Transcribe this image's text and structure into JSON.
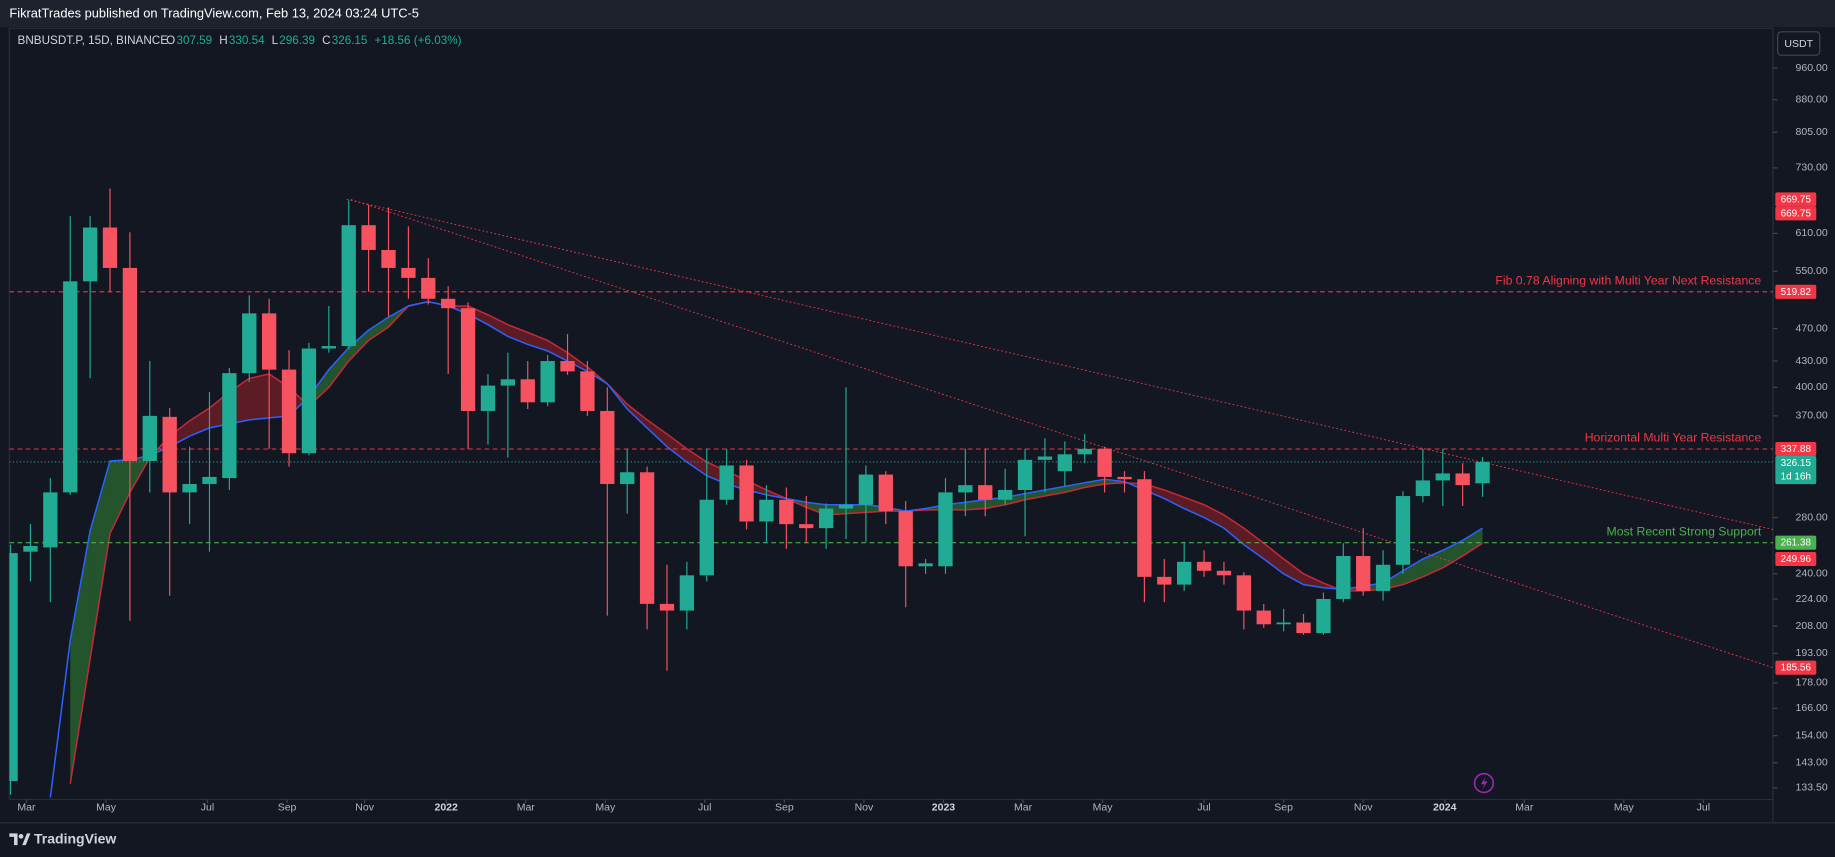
{
  "header": {
    "publisher": "FikratTrades published on TradingView.com, Feb 13, 2024 03:24 UTC-5"
  },
  "footer": {
    "brand": "TradingView"
  },
  "chart_data": {
    "type": "candlestick",
    "symbol": "BNBUSDT.P, 15D, BINANCE",
    "currency": "USDT",
    "legend_keys": [
      "O",
      "H",
      "L",
      "C"
    ],
    "change_label": "+18.56 (+6.03%)",
    "up_color": "#22ab94",
    "down_color": "#f7525f",
    "log_scale": true,
    "grid": false,
    "categories": [
      null,
      null,
      null,
      null,
      null,
      null,
      null,
      null,
      null,
      null,
      null,
      null,
      null,
      null,
      null,
      null,
      null,
      null,
      null,
      null,
      null,
      null,
      null,
      null,
      null,
      null,
      null,
      null,
      null,
      null,
      null,
      null,
      null,
      null,
      null,
      null,
      null,
      null,
      null,
      null,
      null,
      null,
      null,
      null,
      null,
      null,
      null,
      null,
      null,
      null,
      null,
      null,
      null,
      null,
      null,
      null,
      null,
      null,
      null,
      null,
      null,
      null,
      null,
      null,
      null,
      null,
      null,
      null,
      null,
      null,
      null,
      null,
      null,
      null,
      null
    ],
    "open": [
      136,
      255,
      258,
      300,
      535,
      620,
      555,
      327,
      369,
      300,
      307,
      312,
      416,
      490,
      420,
      334,
      445,
      448,
      624,
      583,
      555,
      540,
      510,
      497,
      375,
      402,
      409,
      384,
      430,
      418,
      375,
      307,
      317,
      221,
      217,
      239,
      294,
      323,
      277,
      294,
      275,
      272,
      287,
      290,
      315,
      285,
      245,
      245,
      300,
      306,
      294,
      302,
      328,
      318,
      333,
      338,
      313,
      311,
      238,
      233,
      248,
      242,
      239,
      217,
      209,
      210,
      204,
      224,
      252,
      229,
      246,
      297,
      310,
      316,
      307.59
    ],
    "high": [
      260,
      275,
      312,
      640,
      640,
      690,
      612,
      430,
      378,
      340,
      395,
      422,
      515,
      510,
      443,
      452,
      500,
      668,
      660,
      655,
      622,
      570,
      528,
      505,
      415,
      440,
      430,
      437,
      463,
      430,
      400,
      338,
      322,
      246,
      248,
      338,
      338,
      328,
      306,
      304,
      297,
      291,
      400,
      323,
      318,
      293,
      250,
      312,
      338,
      338,
      320,
      338,
      348,
      345,
      352,
      340,
      318,
      318,
      250,
      262,
      256,
      248,
      241,
      221,
      218,
      215,
      228,
      261,
      272,
      256,
      301,
      338,
      338,
      325,
      330.54
    ],
    "low": [
      131,
      235,
      222,
      298,
      410,
      520,
      211,
      300,
      226,
      275,
      255,
      302,
      406,
      338,
      322,
      332,
      440,
      444,
      520,
      486,
      510,
      502,
      415,
      338,
      342,
      330,
      377,
      380,
      414,
      370,
      214,
      283,
      206,
      184,
      206,
      235,
      290,
      271,
      261,
      257,
      261,
      257,
      264,
      262,
      275,
      219,
      240,
      240,
      281,
      281,
      290,
      266,
      300,
      305,
      325,
      300,
      300,
      222,
      222,
      229,
      238,
      233,
      206,
      207,
      205,
      203,
      203,
      222,
      226,
      223,
      240,
      292,
      289,
      289,
      296.39
    ],
    "close": [
      254,
      259,
      300,
      535,
      620,
      555,
      327,
      370,
      300,
      307,
      313,
      416,
      490,
      420,
      334,
      445,
      448,
      624,
      583,
      555,
      540,
      510,
      497,
      375,
      402,
      409,
      384,
      430,
      418,
      375,
      307,
      317,
      221,
      217,
      239,
      294,
      323,
      277,
      294,
      275,
      272,
      287,
      290,
      315,
      285,
      245,
      247,
      300,
      306,
      294,
      302,
      328,
      331,
      333,
      338,
      313,
      311,
      238,
      233,
      248,
      242,
      239,
      217,
      209,
      210,
      204,
      224,
      252,
      229,
      246,
      297,
      310,
      316,
      306,
      326.15
    ],
    "ribbon": {
      "fast_color": "#2962ff",
      "slow_color": "#c62838",
      "up_fill": "#2e7d32",
      "down_fill": "#8e1f2a",
      "fast": [
        null,
        null,
        130,
        200,
        270,
        327,
        328,
        332,
        340,
        350,
        358,
        362,
        366,
        368,
        370,
        390,
        420,
        446,
        468,
        485,
        500,
        506,
        500,
        489,
        475,
        460,
        450,
        442,
        430,
        418,
        404,
        377,
        358,
        340,
        326,
        314,
        307,
        302,
        298,
        295,
        292,
        290,
        290,
        290,
        288,
        285,
        287,
        290,
        292,
        294,
        296,
        299,
        302,
        305,
        308,
        311,
        309,
        302,
        295,
        287,
        280,
        272,
        260,
        250,
        240,
        233,
        231,
        230,
        232,
        234,
        242,
        250,
        256,
        263,
        272
      ],
      "slow": [
        null,
        null,
        null,
        135,
        190,
        268,
        300,
        330,
        350,
        365,
        378,
        395,
        410,
        415,
        400,
        380,
        400,
        430,
        455,
        472,
        500,
        506,
        500,
        500,
        488,
        475,
        465,
        455,
        440,
        423,
        404,
        382,
        366,
        352,
        338,
        326,
        318,
        310,
        302,
        295,
        288,
        282,
        283,
        284,
        285,
        285,
        286,
        286,
        286,
        287,
        290,
        294,
        297,
        300,
        304,
        307,
        308,
        307,
        302,
        296,
        290,
        282,
        272,
        261,
        250,
        240,
        234,
        229,
        229,
        230,
        233,
        238,
        244,
        252,
        261
      ]
    },
    "levels": [
      {
        "value": 519.82,
        "label": "Fib 0.78 Aligning with Multi Year Next Resistance",
        "color": "#f23645",
        "style": "dashed"
      },
      {
        "value": 337.88,
        "label": "Horizontal Multi Year Resistance",
        "color": "#f23645",
        "style": "dashed"
      },
      {
        "value": 326.15,
        "countdown": "1d 16h",
        "color": "#22ab94",
        "style": "dotted"
      },
      {
        "value": 261.38,
        "label": "Most Recent Strong Support",
        "color": "#4caf50",
        "style": "dashed"
      }
    ],
    "price_labels": [
      {
        "value": 669.75,
        "color": "#f23645"
      },
      {
        "value": 669.75,
        "color": "#f23645"
      },
      {
        "value": 249.96,
        "color": "#f23645"
      },
      {
        "value": 185.56,
        "color": "#f23645"
      }
    ],
    "trendlines": [
      {
        "x": [
          16.9,
          88.6
        ],
        "y": [
          669.75,
          271
        ],
        "color": "#f23645"
      },
      {
        "x": [
          17.1,
          88.6
        ],
        "y": [
          669.75,
          185.56
        ],
        "color": "#f23645"
      }
    ],
    "xlim": [
      -0.06,
      88.6
    ],
    "xticks": [
      {
        "value": 0.8,
        "label": "Mar"
      },
      {
        "value": 4.8,
        "label": "May"
      },
      {
        "value": 9.9,
        "label": "Jul"
      },
      {
        "value": 13.9,
        "label": "Sep"
      },
      {
        "value": 17.8,
        "label": "Nov"
      },
      {
        "value": 21.9,
        "label": "2022"
      },
      {
        "value": 25.9,
        "label": "Mar"
      },
      {
        "value": 29.9,
        "label": "May"
      },
      {
        "value": 34.9,
        "label": "Jul"
      },
      {
        "value": 38.9,
        "label": "Sep"
      },
      {
        "value": 42.9,
        "label": "Nov"
      },
      {
        "value": 46.9,
        "label": "2023"
      },
      {
        "value": 50.9,
        "label": "Mar"
      },
      {
        "value": 54.9,
        "label": "May"
      },
      {
        "value": 60,
        "label": "Jul"
      },
      {
        "value": 64,
        "label": "Sep"
      },
      {
        "value": 68,
        "label": "Nov"
      },
      {
        "value": 72.1,
        "label": "2024"
      },
      {
        "value": 76.1,
        "label": "Mar"
      },
      {
        "value": 81.1,
        "label": "May"
      },
      {
        "value": 85.1,
        "label": "Jul"
      }
    ],
    "ylim": [
      129.3,
      1067
    ],
    "yticks": [
      {
        "value": 960,
        "label": "960.00"
      },
      {
        "value": 880,
        "label": "880.00"
      },
      {
        "value": 805,
        "label": "805.00"
      },
      {
        "value": 730,
        "label": "730.00"
      },
      {
        "value": 610,
        "label": "610.00"
      },
      {
        "value": 550,
        "label": "550.00"
      },
      {
        "value": 470,
        "label": "470.00"
      },
      {
        "value": 430,
        "label": "430.00"
      },
      {
        "value": 400,
        "label": "400.00"
      },
      {
        "value": 370,
        "label": "370.00"
      },
      {
        "value": 280,
        "label": "280.00"
      },
      {
        "value": 240,
        "label": "240.00"
      },
      {
        "value": 224,
        "label": "224.00"
      },
      {
        "value": 208,
        "label": "208.00"
      },
      {
        "value": 193,
        "label": "193.00"
      },
      {
        "value": 178,
        "label": "178.00"
      },
      {
        "value": 166,
        "label": "166.00"
      },
      {
        "value": 154,
        "label": "154.00"
      },
      {
        "value": 143,
        "label": "143.00"
      },
      {
        "value": 133.5,
        "label": "133.50"
      }
    ]
  }
}
